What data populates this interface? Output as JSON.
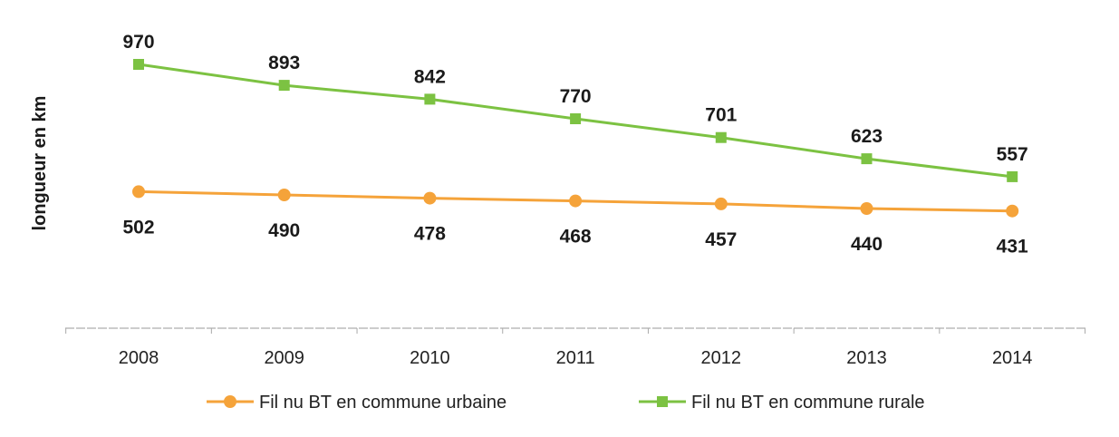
{
  "chart_data": {
    "type": "line",
    "title": "",
    "xlabel": "",
    "ylabel": "longueur en km",
    "categories": [
      "2008",
      "2009",
      "2010",
      "2011",
      "2012",
      "2013",
      "2014"
    ],
    "ylim": [
      0,
      1000
    ],
    "grid": false,
    "legend_position": "bottom",
    "series": [
      {
        "name": "Fil nu BT en commune urbaine",
        "color": "#f5a33a",
        "marker": "diamond",
        "values": [
          502,
          490,
          478,
          468,
          457,
          440,
          431
        ]
      },
      {
        "name": "Fil nu BT en commune rurale",
        "color": "#7cc242",
        "marker": "square",
        "values": [
          970,
          893,
          842,
          770,
          701,
          623,
          557
        ]
      }
    ]
  }
}
